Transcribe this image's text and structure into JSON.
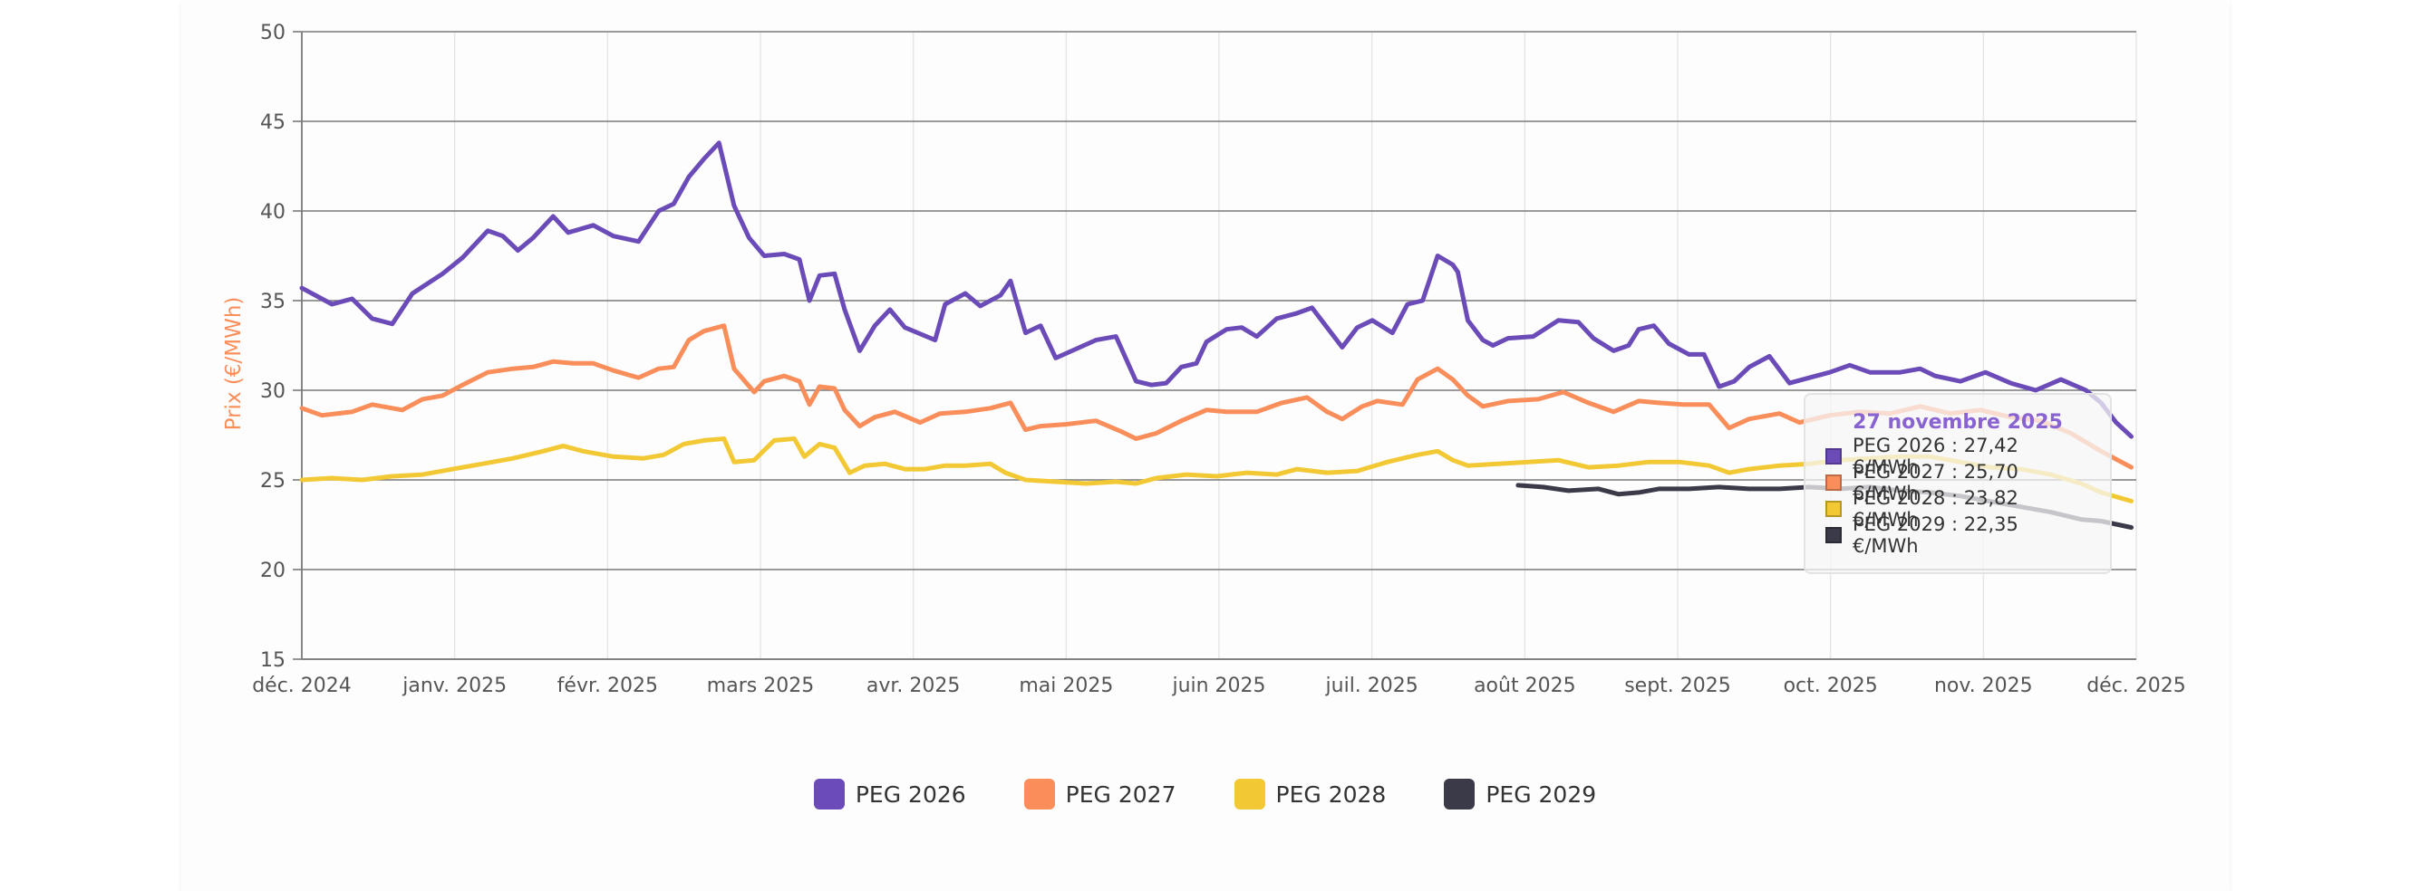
{
  "chart_data": {
    "type": "line",
    "ylabel": "Prix (€/MWh)",
    "ylim": [
      15,
      50
    ],
    "yticks": [
      15,
      20,
      25,
      30,
      35,
      40,
      45,
      50
    ],
    "xlim": [
      "2024-12-01",
      "2025-12-01"
    ],
    "xtick_labels": [
      "déc. 2024",
      "janv. 2025",
      "févr. 2025",
      "mars 2025",
      "avr. 2025",
      "mai 2025",
      "juin 2025",
      "juil. 2025",
      "août 2025",
      "sept. 2025",
      "oct. 2025",
      "nov. 2025",
      "déc. 2025"
    ],
    "series": [
      {
        "name": "PEG 2026",
        "color": "#6b4bb8",
        "points": [
          [
            0,
            35.7
          ],
          [
            6,
            34.8
          ],
          [
            10,
            35.1
          ],
          [
            14,
            34.0
          ],
          [
            18,
            33.7
          ],
          [
            22,
            35.4
          ],
          [
            28,
            36.5
          ],
          [
            32,
            37.4
          ],
          [
            37,
            38.9
          ],
          [
            40,
            38.6
          ],
          [
            43,
            37.8
          ],
          [
            46,
            38.5
          ],
          [
            50,
            39.7
          ],
          [
            53,
            38.8
          ],
          [
            58,
            39.2
          ],
          [
            62,
            38.6
          ],
          [
            67,
            38.3
          ],
          [
            71,
            40.0
          ],
          [
            74,
            40.4
          ],
          [
            77,
            41.9
          ],
          [
            80,
            42.9
          ],
          [
            83,
            43.8
          ],
          [
            86,
            40.3
          ],
          [
            89,
            38.5
          ],
          [
            92,
            37.5
          ],
          [
            96,
            37.6
          ],
          [
            99,
            37.3
          ],
          [
            101,
            35.0
          ],
          [
            103,
            36.4
          ],
          [
            106,
            36.5
          ],
          [
            108,
            34.5
          ],
          [
            111,
            32.2
          ],
          [
            114,
            33.6
          ],
          [
            117,
            34.5
          ],
          [
            120,
            33.5
          ],
          [
            126,
            32.8
          ],
          [
            128,
            34.8
          ],
          [
            132,
            35.4
          ],
          [
            135,
            34.7
          ],
          [
            139,
            35.3
          ],
          [
            141,
            36.1
          ],
          [
            144,
            33.2
          ],
          [
            147,
            33.6
          ],
          [
            150,
            31.8
          ],
          [
            154,
            32.3
          ],
          [
            158,
            32.8
          ],
          [
            162,
            33.0
          ],
          [
            166,
            30.5
          ],
          [
            169,
            30.3
          ],
          [
            172,
            30.4
          ],
          [
            175,
            31.3
          ],
          [
            178,
            31.5
          ],
          [
            180,
            32.7
          ],
          [
            184,
            33.4
          ],
          [
            187,
            33.5
          ],
          [
            190,
            33.0
          ],
          [
            194,
            34.0
          ],
          [
            198,
            34.3
          ],
          [
            201,
            34.6
          ],
          [
            204,
            33.5
          ],
          [
            207,
            32.4
          ],
          [
            210,
            33.5
          ],
          [
            213,
            33.9
          ],
          [
            217,
            33.2
          ],
          [
            220,
            34.8
          ],
          [
            223,
            35.0
          ],
          [
            226,
            37.5
          ],
          [
            229,
            37.0
          ],
          [
            230,
            36.6
          ],
          [
            232,
            33.9
          ],
          [
            235,
            32.8
          ],
          [
            237,
            32.5
          ],
          [
            240,
            32.9
          ],
          [
            245,
            33.0
          ],
          [
            250,
            33.9
          ],
          [
            254,
            33.8
          ],
          [
            257,
            32.9
          ],
          [
            261,
            32.2
          ],
          [
            264,
            32.5
          ],
          [
            266,
            33.4
          ],
          [
            269,
            33.6
          ],
          [
            272,
            32.6
          ],
          [
            276,
            32.0
          ],
          [
            279,
            32.0
          ],
          [
            282,
            30.2
          ],
          [
            285,
            30.5
          ],
          [
            288,
            31.3
          ],
          [
            292,
            31.9
          ],
          [
            296,
            30.4
          ],
          [
            300,
            30.7
          ],
          [
            304,
            31.0
          ],
          [
            308,
            31.4
          ],
          [
            312,
            31.0
          ],
          [
            318,
            31.0
          ],
          [
            322,
            31.2
          ],
          [
            325,
            30.8
          ],
          [
            330,
            30.5
          ],
          [
            335,
            31.0
          ],
          [
            340,
            30.4
          ],
          [
            345,
            30.0
          ],
          [
            350,
            30.6
          ],
          [
            355,
            30.0
          ],
          [
            358,
            29.3
          ],
          [
            361,
            28.2
          ],
          [
            364,
            27.42
          ]
        ]
      },
      {
        "name": "PEG 2027",
        "color": "#f98e5b",
        "points": [
          [
            0,
            29.0
          ],
          [
            4,
            28.6
          ],
          [
            10,
            28.8
          ],
          [
            14,
            29.2
          ],
          [
            20,
            28.9
          ],
          [
            24,
            29.5
          ],
          [
            28,
            29.7
          ],
          [
            32,
            30.3
          ],
          [
            37,
            31.0
          ],
          [
            42,
            31.2
          ],
          [
            46,
            31.3
          ],
          [
            50,
            31.6
          ],
          [
            54,
            31.5
          ],
          [
            58,
            31.5
          ],
          [
            62,
            31.1
          ],
          [
            67,
            30.7
          ],
          [
            71,
            31.2
          ],
          [
            74,
            31.3
          ],
          [
            77,
            32.8
          ],
          [
            80,
            33.3
          ],
          [
            84,
            33.6
          ],
          [
            86,
            31.2
          ],
          [
            90,
            29.9
          ],
          [
            92,
            30.5
          ],
          [
            96,
            30.8
          ],
          [
            99,
            30.5
          ],
          [
            101,
            29.2
          ],
          [
            103,
            30.2
          ],
          [
            106,
            30.1
          ],
          [
            108,
            28.9
          ],
          [
            111,
            28.0
          ],
          [
            114,
            28.5
          ],
          [
            118,
            28.8
          ],
          [
            123,
            28.2
          ],
          [
            127,
            28.7
          ],
          [
            132,
            28.8
          ],
          [
            137,
            29.0
          ],
          [
            141,
            29.3
          ],
          [
            144,
            27.8
          ],
          [
            147,
            28.0
          ],
          [
            152,
            28.1
          ],
          [
            158,
            28.3
          ],
          [
            163,
            27.7
          ],
          [
            166,
            27.3
          ],
          [
            170,
            27.6
          ],
          [
            175,
            28.3
          ],
          [
            180,
            28.9
          ],
          [
            184,
            28.8
          ],
          [
            190,
            28.8
          ],
          [
            195,
            29.3
          ],
          [
            200,
            29.6
          ],
          [
            204,
            28.8
          ],
          [
            207,
            28.4
          ],
          [
            211,
            29.1
          ],
          [
            214,
            29.4
          ],
          [
            219,
            29.2
          ],
          [
            222,
            30.6
          ],
          [
            226,
            31.2
          ],
          [
            229,
            30.6
          ],
          [
            232,
            29.7
          ],
          [
            235,
            29.1
          ],
          [
            240,
            29.4
          ],
          [
            246,
            29.5
          ],
          [
            251,
            29.9
          ],
          [
            256,
            29.3
          ],
          [
            261,
            28.8
          ],
          [
            266,
            29.4
          ],
          [
            270,
            29.3
          ],
          [
            275,
            29.2
          ],
          [
            280,
            29.2
          ],
          [
            284,
            27.9
          ],
          [
            288,
            28.4
          ],
          [
            294,
            28.7
          ],
          [
            298,
            28.2
          ],
          [
            304,
            28.6
          ],
          [
            310,
            28.8
          ],
          [
            316,
            28.7
          ],
          [
            322,
            29.1
          ],
          [
            328,
            28.7
          ],
          [
            334,
            28.9
          ],
          [
            340,
            28.5
          ],
          [
            346,
            28.3
          ],
          [
            352,
            27.6
          ],
          [
            358,
            26.6
          ],
          [
            364,
            25.7
          ]
        ]
      },
      {
        "name": "PEG 2028",
        "color": "#f2c934",
        "points": [
          [
            0,
            25.0
          ],
          [
            6,
            25.1
          ],
          [
            12,
            25.0
          ],
          [
            18,
            25.2
          ],
          [
            24,
            25.3
          ],
          [
            30,
            25.6
          ],
          [
            36,
            25.9
          ],
          [
            42,
            26.2
          ],
          [
            48,
            26.6
          ],
          [
            52,
            26.9
          ],
          [
            56,
            26.6
          ],
          [
            62,
            26.3
          ],
          [
            68,
            26.2
          ],
          [
            72,
            26.4
          ],
          [
            76,
            27.0
          ],
          [
            80,
            27.2
          ],
          [
            84,
            27.3
          ],
          [
            86,
            26.0
          ],
          [
            90,
            26.1
          ],
          [
            94,
            27.2
          ],
          [
            98,
            27.3
          ],
          [
            100,
            26.3
          ],
          [
            103,
            27.0
          ],
          [
            106,
            26.8
          ],
          [
            109,
            25.4
          ],
          [
            112,
            25.8
          ],
          [
            116,
            25.9
          ],
          [
            120,
            25.6
          ],
          [
            124,
            25.6
          ],
          [
            128,
            25.8
          ],
          [
            132,
            25.8
          ],
          [
            137,
            25.9
          ],
          [
            140,
            25.4
          ],
          [
            144,
            25.0
          ],
          [
            150,
            24.9
          ],
          [
            156,
            24.8
          ],
          [
            162,
            24.9
          ],
          [
            166,
            24.8
          ],
          [
            170,
            25.1
          ],
          [
            176,
            25.3
          ],
          [
            182,
            25.2
          ],
          [
            188,
            25.4
          ],
          [
            194,
            25.3
          ],
          [
            198,
            25.6
          ],
          [
            204,
            25.4
          ],
          [
            210,
            25.5
          ],
          [
            216,
            26.0
          ],
          [
            222,
            26.4
          ],
          [
            226,
            26.6
          ],
          [
            229,
            26.1
          ],
          [
            232,
            25.8
          ],
          [
            238,
            25.9
          ],
          [
            244,
            26.0
          ],
          [
            250,
            26.1
          ],
          [
            256,
            25.7
          ],
          [
            262,
            25.8
          ],
          [
            268,
            26.0
          ],
          [
            274,
            26.0
          ],
          [
            280,
            25.8
          ],
          [
            284,
            25.4
          ],
          [
            288,
            25.6
          ],
          [
            294,
            25.8
          ],
          [
            300,
            25.9
          ],
          [
            306,
            26.1
          ],
          [
            312,
            26.2
          ],
          [
            318,
            26.3
          ],
          [
            324,
            26.3
          ],
          [
            330,
            26.0
          ],
          [
            336,
            25.7
          ],
          [
            342,
            25.6
          ],
          [
            348,
            25.3
          ],
          [
            354,
            24.8
          ],
          [
            358,
            24.3
          ],
          [
            364,
            23.82
          ]
        ]
      },
      {
        "name": "PEG 2029",
        "color": "#3a3a48",
        "points": [
          [
            242,
            24.7
          ],
          [
            247,
            24.6
          ],
          [
            252,
            24.4
          ],
          [
            258,
            24.5
          ],
          [
            262,
            24.2
          ],
          [
            266,
            24.3
          ],
          [
            270,
            24.5
          ],
          [
            276,
            24.5
          ],
          [
            282,
            24.6
          ],
          [
            288,
            24.5
          ],
          [
            294,
            24.5
          ],
          [
            300,
            24.6
          ],
          [
            306,
            24.5
          ],
          [
            312,
            24.6
          ],
          [
            318,
            24.4
          ],
          [
            324,
            24.3
          ],
          [
            330,
            24.1
          ],
          [
            336,
            23.8
          ],
          [
            342,
            23.5
          ],
          [
            348,
            23.2
          ],
          [
            354,
            22.8
          ],
          [
            358,
            22.7
          ],
          [
            364,
            22.35
          ]
        ]
      }
    ]
  },
  "tooltip": {
    "title": "27 novembre 2025",
    "rows": [
      {
        "text": "PEG 2026 : 27,42 €/MWh",
        "color": "#6b4bb8"
      },
      {
        "text": "PEG 2027 : 25,70 €/MWh",
        "color": "#f98e5b"
      },
      {
        "text": "PEG 2028 : 23,82 €/MWh",
        "color": "#f2c934"
      },
      {
        "text": "PEG 2029 : 22,35 €/MWh",
        "color": "#3a3a48"
      }
    ]
  },
  "legend": [
    {
      "label": "PEG 2026",
      "color": "#6b4bb8"
    },
    {
      "label": "PEG 2027",
      "color": "#f98e5b"
    },
    {
      "label": "PEG 2028",
      "color": "#f2c934"
    },
    {
      "label": "PEG 2029",
      "color": "#3a3a48"
    }
  ]
}
